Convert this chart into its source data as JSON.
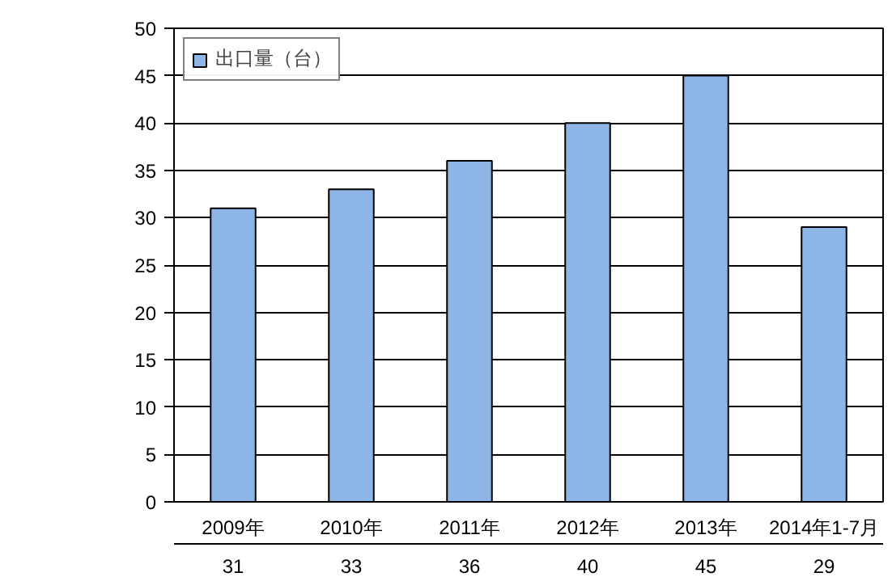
{
  "chart_data": {
    "type": "bar",
    "categories": [
      "2009年",
      "2010年",
      "2011年",
      "2012年",
      "2013年",
      "2014年1-7月"
    ],
    "series": [
      {
        "name": "出口量（台）",
        "color": "#8db6e6",
        "values": [
          31,
          33,
          36,
          40,
          45,
          29
        ]
      }
    ],
    "ylim": [
      0,
      50
    ],
    "yticks": [
      0,
      5,
      10,
      15,
      20,
      25,
      30,
      35,
      40,
      45,
      50
    ],
    "grid": "y",
    "legend": "top left",
    "data_labels": true
  }
}
